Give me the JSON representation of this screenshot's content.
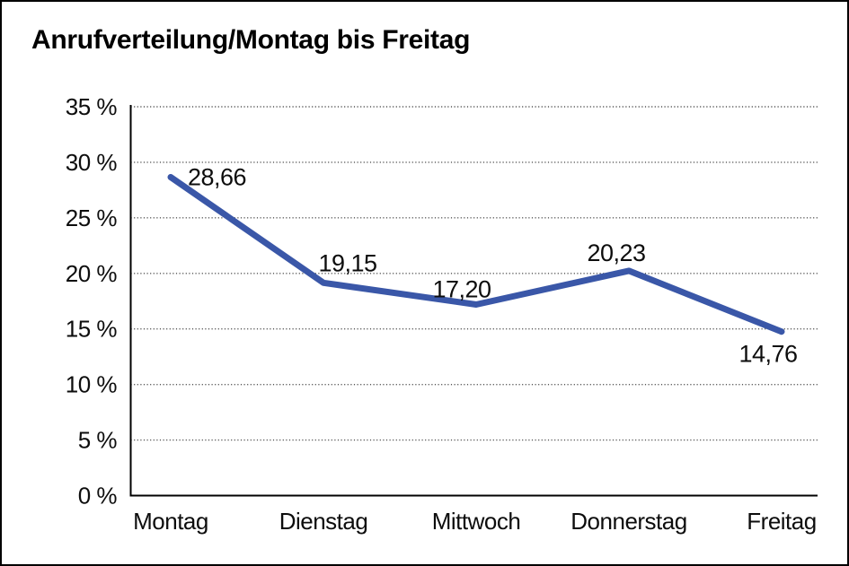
{
  "window": {
    "background": "#ffffff",
    "frame_border_color": "#000000"
  },
  "chart_data": {
    "type": "line",
    "title": "Anrufverteilung/Montag bis Freitag",
    "categories": [
      "Montag",
      "Dienstag",
      "Mittwoch",
      "Donnerstag",
      "Freitag"
    ],
    "values": [
      28.66,
      19.15,
      17.2,
      20.23,
      14.76
    ],
    "value_labels": [
      "28,66",
      "19,15",
      "17,20",
      "20,23",
      "14,76"
    ],
    "series_name": "Anrufverteilung",
    "xlabel": "",
    "ylabel": "",
    "ylim": [
      0,
      35
    ],
    "y_tick_step": 5,
    "y_ticks": [
      0,
      5,
      10,
      15,
      20,
      25,
      30,
      35
    ],
    "y_tick_labels": [
      "0 %",
      "5 %",
      "10 %",
      "15 %",
      "20 %",
      "25 %",
      "30 %",
      "35 %"
    ],
    "grid": "horizontal-dotted",
    "legend": "none",
    "line_color": "#3A57A8",
    "axis_color": "#000000",
    "grid_color": "#555555",
    "text_color": "#0d0d0d"
  }
}
